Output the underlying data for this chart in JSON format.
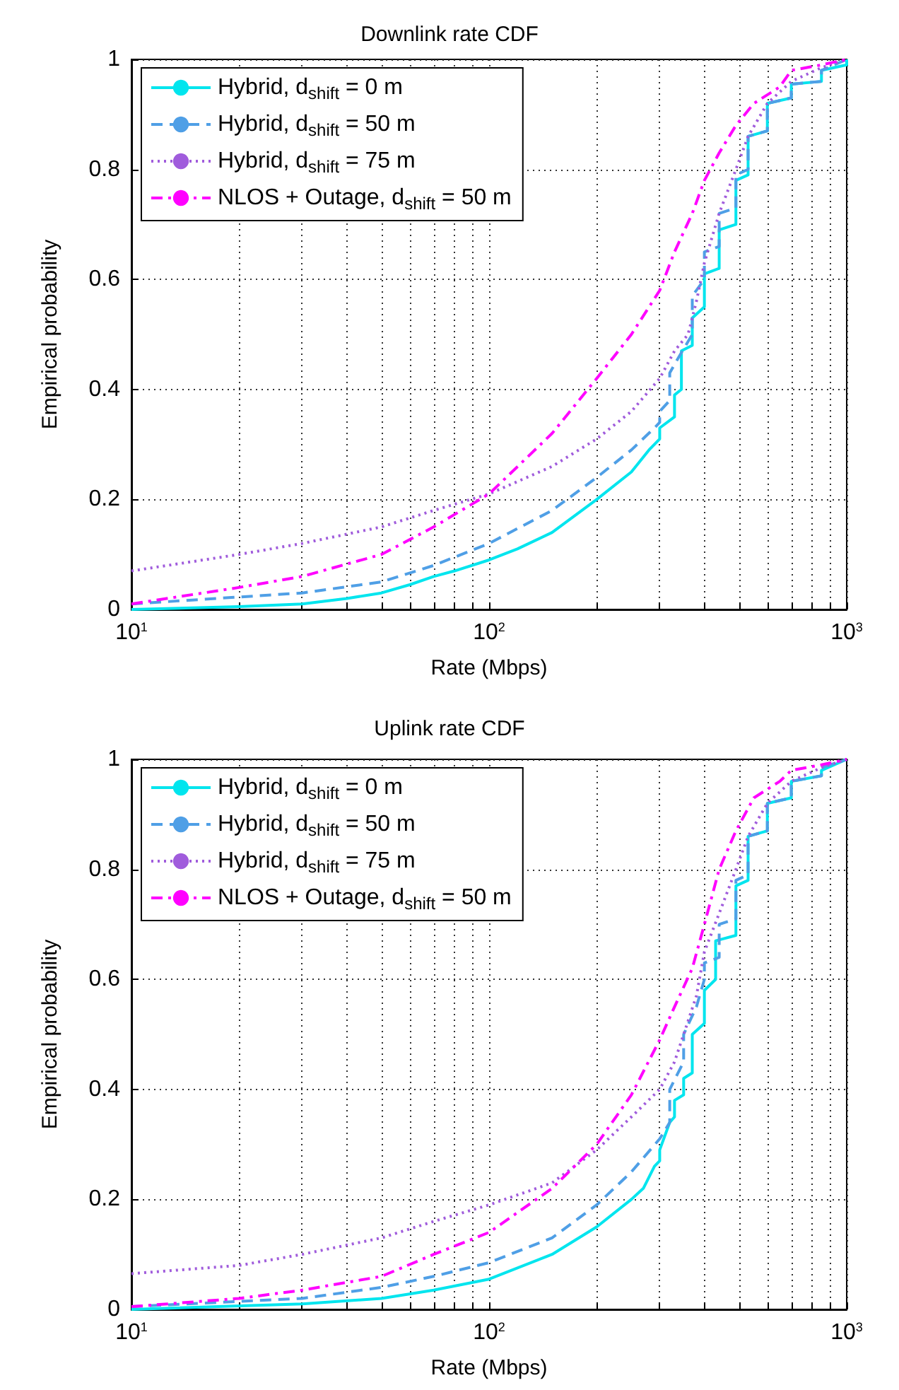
{
  "chart_data": [
    {
      "type": "line",
      "title": "Downlink rate CDF",
      "xlabel": "Rate (Mbps)",
      "ylabel": "Empirical probability",
      "log": "x",
      "grid": true,
      "legend": "top left",
      "marker": "none",
      "xlim": [
        10,
        1000
      ],
      "xticks": [
        {
          "value": 10,
          "label": "10$^{1}$"
        },
        {
          "value": 20,
          "label": null
        },
        {
          "value": 30,
          "label": null
        },
        {
          "value": 40,
          "label": null
        },
        {
          "value": 50,
          "label": null
        },
        {
          "value": 60,
          "label": null
        },
        {
          "value": 70,
          "label": null
        },
        {
          "value": 80,
          "label": null
        },
        {
          "value": 90,
          "label": null
        },
        {
          "value": 100,
          "label": "10$^{2}$"
        },
        {
          "value": 200,
          "label": null
        },
        {
          "value": 300,
          "label": null
        },
        {
          "value": 400,
          "label": null
        },
        {
          "value": 500,
          "label": null
        },
        {
          "value": 600,
          "label": null
        },
        {
          "value": 700,
          "label": null
        },
        {
          "value": 800,
          "label": null
        },
        {
          "value": 900,
          "label": null
        },
        {
          "value": 1000,
          "label": "10$^{3}$"
        }
      ],
      "ylim": [
        0,
        1
      ],
      "yticks": [
        0,
        0.2,
        0.4,
        0.6,
        0.8,
        1
      ],
      "series": [
        {
          "name": "Hybrid, d$_{shift}$ = 0 m",
          "color": "#00e5ee",
          "line_style": "solid",
          "x": [
            10,
            20,
            30,
            40,
            50,
            60,
            70,
            80,
            100,
            120,
            150,
            200,
            250,
            280,
            300,
            300,
            330,
            330,
            345,
            345,
            370,
            370,
            400,
            400,
            440,
            440,
            490,
            490,
            530,
            530,
            600,
            600,
            700,
            700,
            850,
            850,
            1000,
            1000
          ],
          "values": [
            0,
            0.005,
            0.01,
            0.02,
            0.03,
            0.045,
            0.06,
            0.07,
            0.09,
            0.11,
            0.14,
            0.2,
            0.25,
            0.29,
            0.31,
            0.33,
            0.35,
            0.39,
            0.4,
            0.47,
            0.48,
            0.53,
            0.55,
            0.61,
            0.62,
            0.69,
            0.7,
            0.78,
            0.79,
            0.86,
            0.87,
            0.92,
            0.93,
            0.955,
            0.96,
            0.98,
            0.99,
            1
          ]
        },
        {
          "name": "Hybrid, d$_{shift}$ = 50 m",
          "color": "#4f9fe6",
          "line_style": "dashed",
          "x": [
            10,
            30,
            50,
            70,
            100,
            150,
            200,
            250,
            290,
            300,
            300,
            320,
            320,
            340,
            370,
            370,
            400,
            400,
            440,
            440,
            490,
            490,
            530,
            530,
            600,
            600,
            700,
            700,
            850,
            850,
            1000
          ],
          "values": [
            0.01,
            0.03,
            0.05,
            0.08,
            0.12,
            0.18,
            0.24,
            0.29,
            0.33,
            0.34,
            0.36,
            0.38,
            0.43,
            0.46,
            0.5,
            0.57,
            0.6,
            0.65,
            0.66,
            0.72,
            0.73,
            0.79,
            0.8,
            0.86,
            0.87,
            0.92,
            0.93,
            0.955,
            0.96,
            0.98,
            1
          ]
        },
        {
          "name": "Hybrid, d$_{shift}$ = 75 m",
          "color": "#a05cdc",
          "line_style": "dotted",
          "x": [
            10,
            20,
            30,
            50,
            70,
            100,
            150,
            200,
            250,
            300,
            330,
            360,
            380,
            400,
            440,
            490,
            530,
            600,
            700,
            850,
            1000
          ],
          "values": [
            0.07,
            0.1,
            0.12,
            0.15,
            0.18,
            0.21,
            0.26,
            0.31,
            0.36,
            0.42,
            0.47,
            0.5,
            0.56,
            0.63,
            0.72,
            0.8,
            0.86,
            0.92,
            0.96,
            0.985,
            1
          ]
        },
        {
          "name": "NLOS + Outage, d$_{shift}$ = 50 m",
          "color": "#ff00ff",
          "line_style": "dashdot",
          "x": [
            10,
            20,
            30,
            50,
            70,
            100,
            150,
            200,
            250,
            300,
            330,
            370,
            400,
            440,
            490,
            550,
            650,
            700,
            850,
            1000
          ],
          "values": [
            0.01,
            0.04,
            0.06,
            0.1,
            0.15,
            0.21,
            0.32,
            0.42,
            0.5,
            0.58,
            0.65,
            0.72,
            0.78,
            0.83,
            0.88,
            0.92,
            0.95,
            0.98,
            0.99,
            1
          ]
        }
      ]
    },
    {
      "type": "line",
      "title": "Uplink rate CDF",
      "xlabel": "Rate (Mbps)",
      "ylabel": "Empirical probability",
      "log": "x",
      "grid": true,
      "legend": "top left",
      "marker": "none",
      "xlim": [
        10,
        1000
      ],
      "xticks": [
        {
          "value": 10,
          "label": "10$^{1}$"
        },
        {
          "value": 20,
          "label": null
        },
        {
          "value": 30,
          "label": null
        },
        {
          "value": 40,
          "label": null
        },
        {
          "value": 50,
          "label": null
        },
        {
          "value": 60,
          "label": null
        },
        {
          "value": 70,
          "label": null
        },
        {
          "value": 80,
          "label": null
        },
        {
          "value": 90,
          "label": null
        },
        {
          "value": 100,
          "label": "10$^{2}$"
        },
        {
          "value": 200,
          "label": null
        },
        {
          "value": 300,
          "label": null
        },
        {
          "value": 400,
          "label": null
        },
        {
          "value": 500,
          "label": null
        },
        {
          "value": 600,
          "label": null
        },
        {
          "value": 700,
          "label": null
        },
        {
          "value": 800,
          "label": null
        },
        {
          "value": 900,
          "label": null
        },
        {
          "value": 1000,
          "label": "10$^{3}$"
        }
      ],
      "ylim": [
        0,
        1
      ],
      "yticks": [
        0,
        0.2,
        0.4,
        0.6,
        0.8,
        1
      ],
      "series": [
        {
          "name": "Hybrid, d$_{shift}$ = 0 m",
          "color": "#00e5ee",
          "line_style": "solid",
          "x": [
            10,
            30,
            50,
            70,
            100,
            150,
            200,
            250,
            270,
            290,
            300,
            300,
            320,
            330,
            330,
            350,
            350,
            370,
            370,
            400,
            400,
            430,
            430,
            490,
            490,
            530,
            530,
            600,
            600,
            700,
            700,
            850,
            850,
            1000
          ],
          "values": [
            0,
            0.01,
            0.02,
            0.035,
            0.055,
            0.1,
            0.15,
            0.2,
            0.22,
            0.26,
            0.27,
            0.29,
            0.34,
            0.35,
            0.38,
            0.39,
            0.42,
            0.43,
            0.5,
            0.52,
            0.58,
            0.6,
            0.67,
            0.68,
            0.77,
            0.78,
            0.86,
            0.87,
            0.92,
            0.93,
            0.96,
            0.97,
            0.98,
            1
          ]
        },
        {
          "name": "Hybrid, d$_{shift}$ = 50 m",
          "color": "#4f9fe6",
          "line_style": "dashed",
          "x": [
            10,
            30,
            50,
            70,
            100,
            150,
            200,
            250,
            300,
            320,
            320,
            350,
            350,
            380,
            400,
            400,
            440,
            440,
            490,
            490,
            530,
            530,
            600,
            600,
            700,
            700,
            850,
            850,
            1000
          ],
          "values": [
            0.005,
            0.02,
            0.04,
            0.06,
            0.085,
            0.13,
            0.19,
            0.25,
            0.31,
            0.34,
            0.4,
            0.45,
            0.5,
            0.55,
            0.6,
            0.63,
            0.64,
            0.7,
            0.71,
            0.78,
            0.79,
            0.86,
            0.87,
            0.92,
            0.93,
            0.96,
            0.97,
            0.985,
            1
          ]
        },
        {
          "name": "Hybrid, d$_{shift}$ = 75 m",
          "color": "#a05cdc",
          "line_style": "dotted",
          "x": [
            10,
            20,
            30,
            50,
            70,
            100,
            150,
            200,
            250,
            300,
            330,
            350,
            380,
            400,
            440,
            490,
            530,
            600,
            700,
            850,
            1000
          ],
          "values": [
            0.065,
            0.08,
            0.1,
            0.13,
            0.16,
            0.19,
            0.23,
            0.29,
            0.35,
            0.4,
            0.45,
            0.5,
            0.57,
            0.65,
            0.72,
            0.8,
            0.86,
            0.92,
            0.96,
            0.985,
            1
          ]
        },
        {
          "name": "NLOS + Outage, d$_{shift}$ = 50 m",
          "color": "#ff00ff",
          "line_style": "dashdot",
          "x": [
            10,
            20,
            30,
            50,
            70,
            100,
            150,
            200,
            250,
            300,
            330,
            370,
            400,
            440,
            490,
            550,
            650,
            700,
            850,
            1000
          ],
          "values": [
            0.005,
            0.02,
            0.035,
            0.06,
            0.1,
            0.14,
            0.22,
            0.3,
            0.39,
            0.49,
            0.55,
            0.62,
            0.7,
            0.8,
            0.87,
            0.93,
            0.96,
            0.98,
            0.99,
            1
          ]
        }
      ]
    }
  ]
}
